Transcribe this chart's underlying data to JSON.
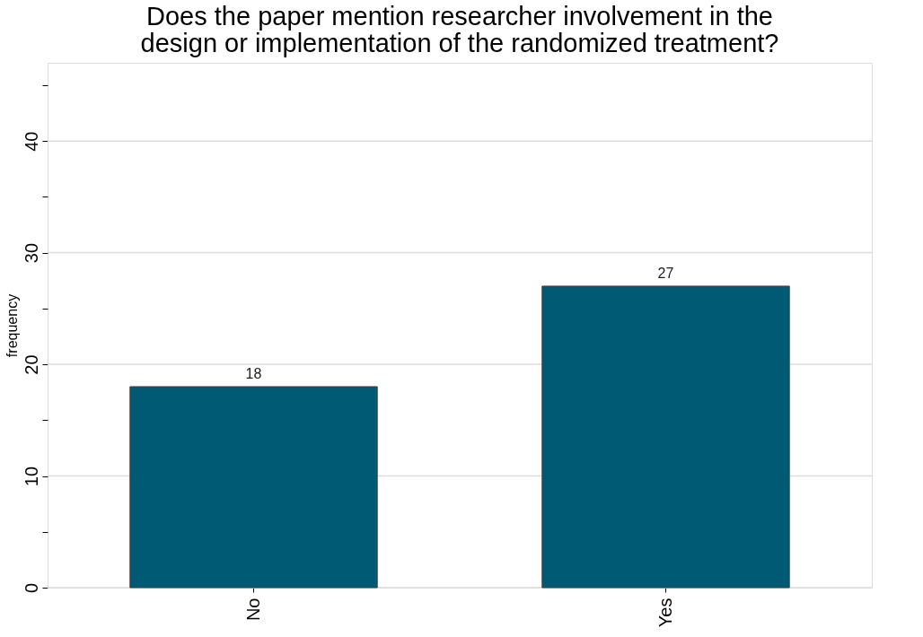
{
  "chart_data": {
    "type": "bar",
    "title": "Does the paper mention researcher involvement in the design or implementation of the randomized treatment?",
    "ylabel": "frequency",
    "categories": [
      "No",
      "Yes"
    ],
    "values": [
      18,
      27
    ],
    "color": "#005a73",
    "ylim": [
      0,
      47
    ],
    "yticks": [
      0,
      {
        "value": 5,
        "label": null
      },
      10,
      {
        "value": 15,
        "label": null
      },
      20,
      {
        "value": 25,
        "label": null
      },
      30,
      {
        "value": 35,
        "label": null
      },
      40,
      {
        "value": 45,
        "label": null
      }
    ],
    "grid": "y",
    "data_labels": true
  }
}
